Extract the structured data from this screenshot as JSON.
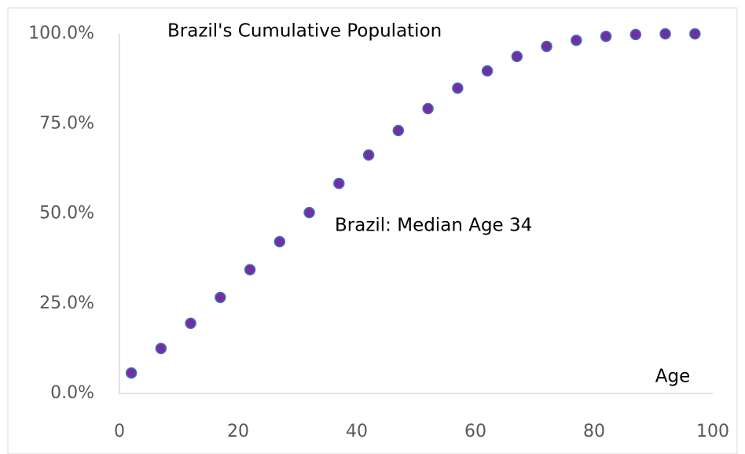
{
  "chart_data": {
    "type": "scatter",
    "title": "Brazil's Cumulative Population",
    "annotation": "Brazil: Median Age 34",
    "x_label": "Age",
    "x": [
      2,
      7,
      12,
      17,
      22,
      27,
      32,
      37,
      42,
      47,
      52,
      57,
      62,
      67,
      72,
      77,
      82,
      87,
      92,
      97
    ],
    "values": [
      5.7,
      12.5,
      19.5,
      26.7,
      34.4,
      42.2,
      50.3,
      58.4,
      66.3,
      73.1,
      79.2,
      84.9,
      89.7,
      93.7,
      96.5,
      98.2,
      99.3,
      99.8,
      100,
      100
    ],
    "color": "#7030a0",
    "edge_color": "#4472c4",
    "xlim": [
      0,
      100
    ],
    "xticks": [
      0,
      20,
      40,
      60,
      80,
      100
    ],
    "ylim": [
      0,
      100
    ],
    "yticks": [
      {
        "value": 0,
        "label": "0.0%"
      },
      {
        "value": 25,
        "label": "25.0%"
      },
      {
        "value": 50,
        "label": "50.0%"
      },
      {
        "value": 75,
        "label": "75.0%"
      },
      {
        "value": 100,
        "label": "100.0%"
      }
    ]
  }
}
